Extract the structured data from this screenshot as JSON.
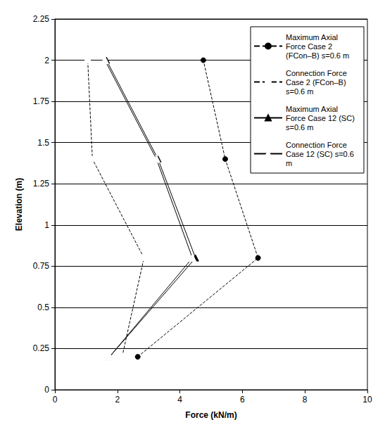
{
  "chart_data": {
    "type": "line",
    "x_label": "Force (kN/m)",
    "y_label": "Elevation (m)",
    "xlim": [
      0,
      10
    ],
    "xticks": [
      0,
      2,
      4,
      6,
      8,
      10
    ],
    "ylim": [
      0,
      2.25
    ],
    "yticks": [
      0,
      0.25,
      0.5,
      0.75,
      1,
      1.25,
      1.5,
      1.75,
      2,
      2.25
    ],
    "grid": "y",
    "legend": "upper right",
    "series": [
      {
        "name": "Maximum Axial Force Case 2 (FCon–B) s=0.6 m",
        "color": "#000000",
        "marker": "circle",
        "line_style": "dashed",
        "x": [
          2.65,
          6.5,
          5.45,
          4.75
        ],
        "y": [
          0.2,
          0.8,
          1.4,
          2.0
        ]
      },
      {
        "name": "Connection Force Case 2 (FCon–B) s=0.6 m",
        "color": "#000000",
        "marker": "circle_open",
        "line_style": "dashed",
        "x": [
          2.15,
          2.85,
          1.2,
          1.05
        ],
        "y": [
          0.2,
          0.8,
          1.4,
          2.0
        ]
      },
      {
        "name": "Maximum Axial Force Case 12 (SC) s=0.6 m",
        "color": "#000000",
        "marker": "triangle",
        "line_style": "solid",
        "x": [
          1.75,
          4.5,
          3.3,
          1.65
        ],
        "y": [
          0.2,
          0.8,
          1.4,
          2.0
        ]
      },
      {
        "name": "Connection Force Case 12 (SC) s=0.6 m",
        "color": "#000000",
        "marker": "triangle_open",
        "line_style": "solid",
        "x": [
          1.75,
          4.4,
          3.25,
          1.6
        ],
        "y": [
          0.2,
          0.8,
          1.4,
          2.0
        ]
      }
    ]
  }
}
